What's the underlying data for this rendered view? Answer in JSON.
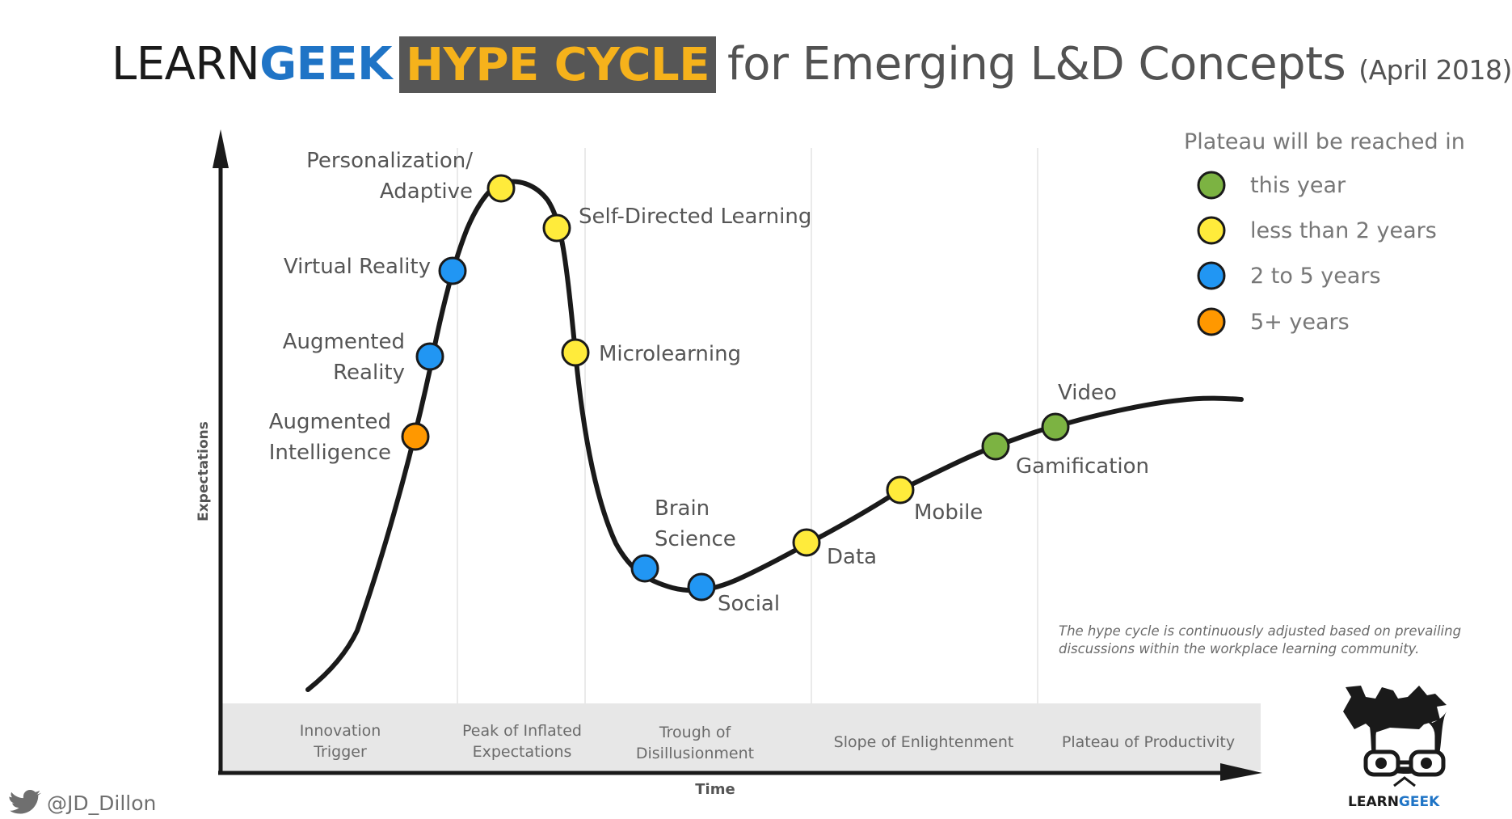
{
  "title": {
    "brand_learn": "LEARN",
    "brand_geek": "GEEK",
    "highlight": "HYPE CYCLE",
    "rest": "for Emerging L&D Concepts",
    "date": "(April 2018)"
  },
  "axes": {
    "y_label": "Expectations",
    "x_label": "Time"
  },
  "phases": [
    [
      "Innovation",
      "Trigger"
    ],
    [
      "Peak of Inflated",
      "Expectations"
    ],
    [
      "Trough of",
      "Disillusionment"
    ],
    [
      "Slope of Enlightenment"
    ],
    [
      "Plateau of Productivity"
    ]
  ],
  "legend": {
    "title": "Plateau will be reached in",
    "items": [
      {
        "key": "this_year",
        "label": "this year",
        "color": "#7cb342"
      },
      {
        "key": "lt2",
        "label": "less than 2 years",
        "color": "#ffeb3b"
      },
      {
        "key": "2to5",
        "label": "2 to 5 years",
        "color": "#2196f3"
      },
      {
        "key": "5plus",
        "label": "5+ years",
        "color": "#ff9800"
      }
    ]
  },
  "concepts": [
    {
      "name": [
        "Augmented",
        "Intelligence"
      ],
      "plateau": "5plus"
    },
    {
      "name": [
        "Augmented",
        "Reality"
      ],
      "plateau": "2to5"
    },
    {
      "name": [
        "Virtual Reality"
      ],
      "plateau": "2to5"
    },
    {
      "name": [
        "Personalization/",
        "Adaptive"
      ],
      "plateau": "lt2"
    },
    {
      "name": [
        "Self-Directed Learning"
      ],
      "plateau": "lt2"
    },
    {
      "name": [
        "Microlearning"
      ],
      "plateau": "lt2"
    },
    {
      "name": [
        "Brain",
        "Science"
      ],
      "plateau": "2to5"
    },
    {
      "name": [
        "Social"
      ],
      "plateau": "2to5"
    },
    {
      "name": [
        "Data"
      ],
      "plateau": "lt2"
    },
    {
      "name": [
        "Mobile"
      ],
      "plateau": "lt2"
    },
    {
      "name": [
        "Gamification"
      ],
      "plateau": "this_year"
    },
    {
      "name": [
        "Video"
      ],
      "plateau": "this_year"
    }
  ],
  "note": [
    "The hype cycle is continuously adjusted based on prevailing",
    "discussions within the workplace learning community."
  ],
  "logo_text": {
    "learn": "LEARN",
    "geek": "GEEK"
  },
  "handle": "@JD_Dillon",
  "icons": {
    "handle": "twitter-bird-icon",
    "logo": "learngeek-mascot-icon"
  }
}
